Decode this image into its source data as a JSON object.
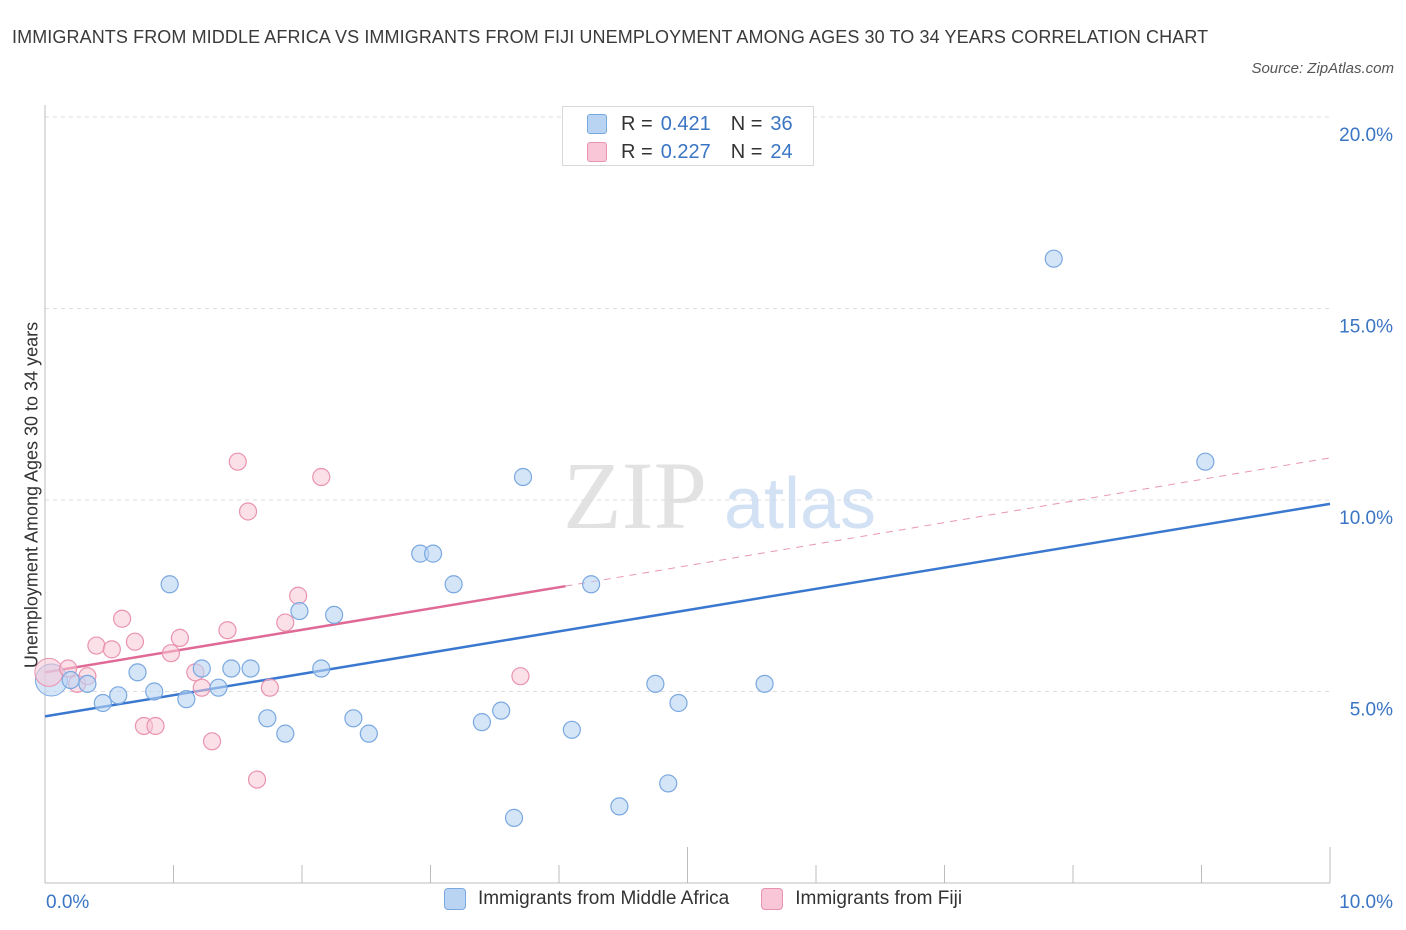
{
  "title": "IMMIGRANTS FROM MIDDLE AFRICA VS IMMIGRANTS FROM FIJI UNEMPLOYMENT AMONG AGES 30 TO 34 YEARS CORRELATION CHART",
  "source": "Source: ZipAtlas.com",
  "watermark": {
    "zip": "ZIP",
    "atlas": "atlas"
  },
  "legend": {
    "r_label": "R =",
    "n_label": "N =",
    "series1": {
      "r": "0.421",
      "n": "36"
    },
    "series2": {
      "r": "0.227",
      "n": "24"
    }
  },
  "colors": {
    "blue_fill": "#b9d3f3",
    "blue_stroke": "#7aa8e0",
    "blue_line": "#3a78d0",
    "pink_fill": "#f8c6d6",
    "pink_stroke": "#e993b0",
    "pink_line": "#e06a96",
    "axis_text": "#3a75c4",
    "grid": "#dcdcdc"
  },
  "chart_data": {
    "type": "scatter",
    "title": "IMMIGRANTS FROM MIDDLE AFRICA VS IMMIGRANTS FROM FIJI UNEMPLOYMENT AMONG AGES 30 TO 34 YEARS CORRELATION CHART",
    "xlabel": "",
    "ylabel": "Unemployment Among Ages 30 to 34 years",
    "xlim": [
      0,
      10
    ],
    "ylim": [
      0,
      20
    ],
    "x_tick_labels": [
      "0.0%",
      "10.0%"
    ],
    "y_ticks": [
      5,
      10,
      15,
      20
    ],
    "y_tick_labels": [
      "5.0%",
      "10.0%",
      "15.0%",
      "20.0%"
    ],
    "grid": true,
    "legend_position": "top-center",
    "series": [
      {
        "name": "Immigrants from Middle Africa",
        "color": "#b9d3f3",
        "points": [
          [
            0.05,
            5.3
          ],
          [
            0.2,
            5.3
          ],
          [
            0.33,
            5.2
          ],
          [
            0.45,
            4.7
          ],
          [
            0.57,
            4.9
          ],
          [
            0.72,
            5.5
          ],
          [
            0.85,
            5.0
          ],
          [
            0.97,
            7.8
          ],
          [
            1.1,
            4.8
          ],
          [
            1.22,
            5.6
          ],
          [
            1.35,
            5.1
          ],
          [
            1.45,
            5.6
          ],
          [
            1.6,
            5.6
          ],
          [
            1.73,
            4.3
          ],
          [
            1.87,
            3.9
          ],
          [
            1.98,
            7.1
          ],
          [
            2.15,
            5.6
          ],
          [
            2.25,
            7.0
          ],
          [
            2.4,
            4.3
          ],
          [
            2.52,
            3.9
          ],
          [
            2.92,
            8.6
          ],
          [
            3.02,
            8.6
          ],
          [
            3.18,
            7.8
          ],
          [
            3.4,
            4.2
          ],
          [
            3.55,
            4.5
          ],
          [
            3.65,
            1.7
          ],
          [
            3.72,
            10.6
          ],
          [
            4.1,
            4.0
          ],
          [
            4.25,
            7.8
          ],
          [
            4.47,
            2.0
          ],
          [
            4.75,
            5.2
          ],
          [
            4.85,
            2.6
          ],
          [
            4.93,
            4.7
          ],
          [
            5.6,
            5.2
          ],
          [
            7.85,
            16.3
          ],
          [
            9.03,
            11.0
          ]
        ],
        "trend": {
          "x": [
            0,
            10
          ],
          "y": [
            4.35,
            9.9
          ]
        }
      },
      {
        "name": "Immigrants from Fiji",
        "color": "#f8c6d6",
        "points": [
          [
            0.03,
            5.5
          ],
          [
            0.18,
            5.6
          ],
          [
            0.25,
            5.2
          ],
          [
            0.33,
            5.4
          ],
          [
            0.4,
            6.2
          ],
          [
            0.52,
            6.1
          ],
          [
            0.6,
            6.9
          ],
          [
            0.7,
            6.3
          ],
          [
            0.77,
            4.1
          ],
          [
            0.86,
            4.1
          ],
          [
            0.98,
            6.0
          ],
          [
            1.05,
            6.4
          ],
          [
            1.17,
            5.5
          ],
          [
            1.22,
            5.1
          ],
          [
            1.3,
            3.7
          ],
          [
            1.42,
            6.6
          ],
          [
            1.5,
            11.0
          ],
          [
            1.58,
            9.7
          ],
          [
            1.65,
            2.7
          ],
          [
            1.75,
            5.1
          ],
          [
            1.87,
            6.8
          ],
          [
            1.97,
            7.5
          ],
          [
            2.15,
            10.6
          ],
          [
            3.7,
            5.4
          ]
        ],
        "trend": {
          "x": [
            0,
            4.05
          ],
          "y": [
            5.5,
            7.75
          ]
        },
        "trend_extension": {
          "x": [
            4.05,
            10
          ],
          "y": [
            7.75,
            11.1
          ]
        }
      }
    ]
  },
  "bottom_legend": {
    "series1": "Immigrants from Middle Africa",
    "series2": "Immigrants from Fiji"
  }
}
